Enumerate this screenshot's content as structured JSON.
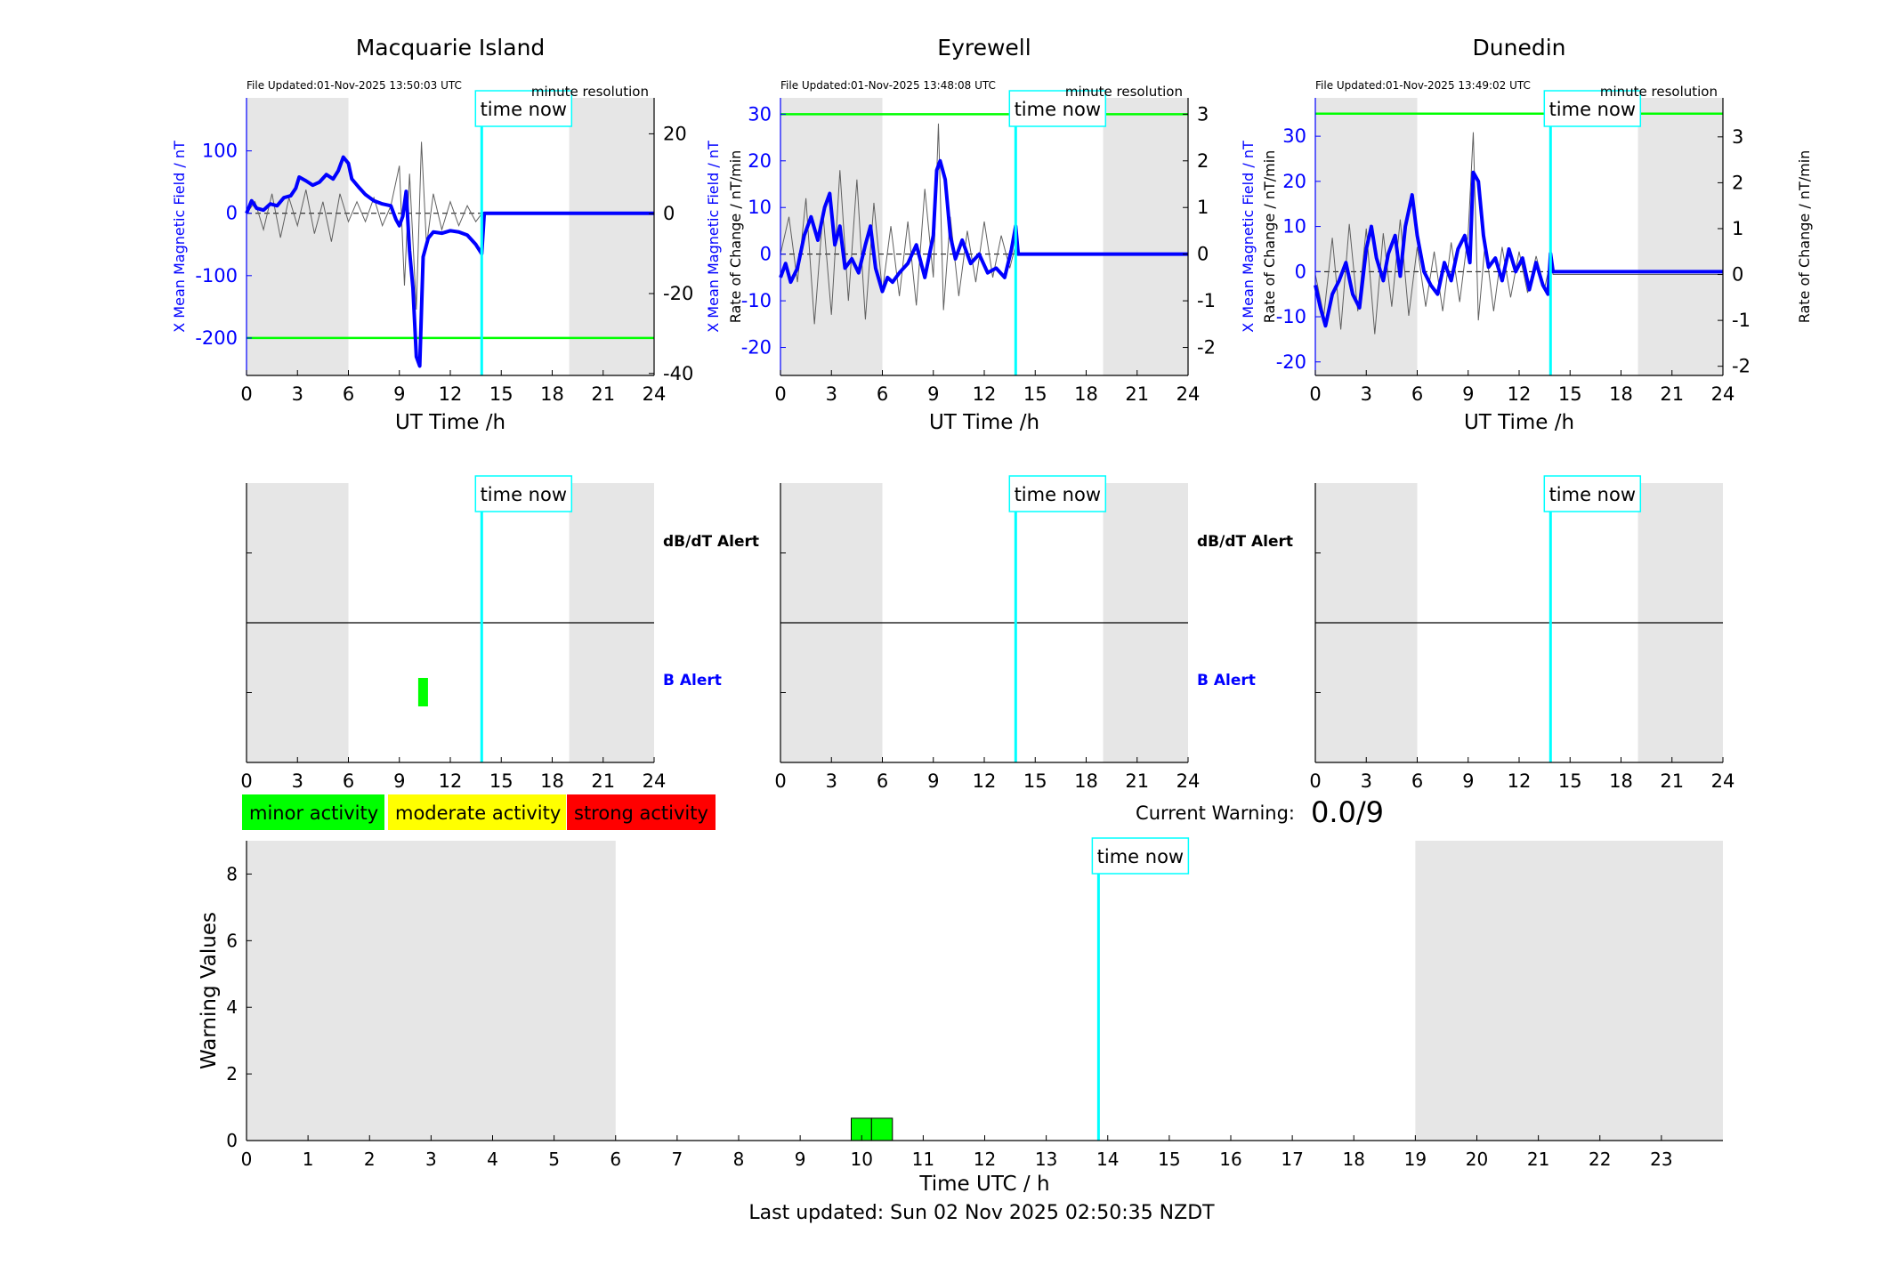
{
  "footer": {
    "last_updated": "Last updated: Sun 02 Nov 2025 02:50:35 NZDT"
  },
  "common": {
    "time_now_label": "time now",
    "now_hour": 13.85,
    "x_label_station": "UT Time /h",
    "resolution_label": "minute resolution",
    "dbdt_alert_label": "dB/dT Alert",
    "b_alert_label": "B Alert",
    "night_shading": [
      [
        0,
        6
      ],
      [
        19,
        24
      ]
    ],
    "colors": {
      "field": "#0000ff",
      "rate": "#606060",
      "threshold": "#00ff00",
      "now": "#00ffff",
      "shade": "#e6e6e6"
    }
  },
  "warning": {
    "current_label": "Current Warning:",
    "current_value": "0.0/9"
  },
  "legend": [
    {
      "label": "minor activity",
      "color": "#00ff00"
    },
    {
      "label": "moderate activity",
      "color": "#ffff00"
    },
    {
      "label": "strong activity",
      "color": "#ff0000"
    }
  ],
  "chart_data": [
    {
      "type": "line",
      "title": "Macquarie Island",
      "file_updated": "File Updated:01-Nov-2025 13:50:03 UTC",
      "ylabel": "X Mean Magnetic Field / nT",
      "ylabel_right": "Rate of Change / nT/min",
      "xlabel": "UT Time /h",
      "xlim": [
        0,
        24
      ],
      "xticks": [
        0,
        3,
        6,
        9,
        12,
        15,
        18,
        21,
        24
      ],
      "ylim": [
        -260,
        185
      ],
      "yticks": [
        -200,
        -100,
        0,
        100
      ],
      "ylim_right": [
        -40.5,
        29
      ],
      "yticks_right": [
        -40,
        -20,
        0,
        20
      ],
      "threshold": -200,
      "series": [
        {
          "role": "field",
          "x": [
            0,
            0.3,
            0.6,
            1,
            1.4,
            1.8,
            2.2,
            2.6,
            2.9,
            3.1,
            3.5,
            3.9,
            4.3,
            4.7,
            5.1,
            5.4,
            5.7,
            6.0,
            6.2,
            6.6,
            7.0,
            7.5,
            8.0,
            8.5,
            8.8,
            9.0,
            9.2,
            9.4,
            9.6,
            9.8,
            10.0,
            10.2,
            10.4,
            10.7,
            11.0,
            11.5,
            12.0,
            12.5,
            13.0,
            13.5,
            13.85,
            14.0,
            24
          ],
          "y": [
            0,
            20,
            8,
            5,
            15,
            12,
            25,
            28,
            40,
            58,
            52,
            45,
            50,
            62,
            55,
            68,
            90,
            80,
            55,
            42,
            30,
            20,
            15,
            12,
            -10,
            -20,
            -5,
            35,
            -60,
            -120,
            -230,
            -245,
            -70,
            -40,
            -30,
            -32,
            -28,
            -30,
            -35,
            -50,
            -65,
            0,
            0
          ]
        },
        {
          "role": "rate",
          "x": [
            0,
            0.5,
            1,
            1.5,
            2,
            2.5,
            3,
            3.5,
            4,
            4.5,
            5,
            5.5,
            6,
            6.5,
            7,
            7.5,
            8,
            8.5,
            9,
            9.3,
            9.6,
            10,
            10.3,
            10.6,
            11,
            11.5,
            12,
            12.5,
            13,
            13.5,
            13.85,
            14,
            24
          ],
          "y": [
            0,
            3,
            -4,
            5,
            -6,
            4,
            -3,
            6,
            -5,
            3,
            -7,
            5,
            -2,
            3,
            -2,
            4,
            -3,
            2,
            12,
            -18,
            10,
            -24,
            18,
            -8,
            5,
            -4,
            3,
            -3,
            2,
            -2,
            0,
            0,
            0
          ]
        }
      ],
      "b_alerts": [
        {
          "start": 9.9,
          "end": 10.4,
          "level": "minor"
        }
      ]
    },
    {
      "type": "line",
      "title": "Eyrewell",
      "file_updated": "File Updated:01-Nov-2025 13:48:08 UTC",
      "ylabel": "X Mean Magnetic Field / nT",
      "ylabel_right": "Rate of Change / nT/min",
      "xlabel": "UT Time /h",
      "xlim": [
        0,
        24
      ],
      "xticks": [
        0,
        3,
        6,
        9,
        12,
        15,
        18,
        21,
        24
      ],
      "ylim": [
        -26,
        33.5
      ],
      "yticks": [
        -20,
        -10,
        0,
        10,
        20,
        30
      ],
      "ylim_right": [
        -2.6,
        3.35
      ],
      "yticks_right": [
        -2,
        -1,
        0,
        1,
        2,
        3
      ],
      "threshold": 30,
      "series": [
        {
          "role": "field",
          "x": [
            0,
            0.3,
            0.6,
            1.0,
            1.4,
            1.8,
            2.2,
            2.6,
            2.9,
            3.2,
            3.5,
            3.8,
            4.2,
            4.6,
            5.0,
            5.3,
            5.6,
            6.0,
            6.3,
            6.6,
            7.0,
            7.5,
            8.0,
            8.5,
            9.0,
            9.2,
            9.4,
            9.7,
            10.0,
            10.3,
            10.7,
            11.2,
            11.7,
            12.2,
            12.7,
            13.2,
            13.6,
            13.85,
            14.0,
            24
          ],
          "y": [
            -5,
            -2,
            -6,
            -3,
            4,
            8,
            3,
            10,
            13,
            2,
            6,
            -3,
            -1,
            -4,
            2,
            6,
            -3,
            -8,
            -5,
            -6,
            -4,
            -2,
            2,
            -5,
            4,
            18,
            20,
            16,
            4,
            -1,
            3,
            -2,
            0,
            -4,
            -3,
            -5,
            1,
            6,
            0,
            0
          ]
        },
        {
          "role": "rate",
          "x": [
            0,
            0.5,
            1,
            1.5,
            2,
            2.5,
            3,
            3.5,
            4,
            4.5,
            5,
            5.5,
            6,
            6.5,
            7,
            7.5,
            8,
            8.5,
            9,
            9.3,
            9.6,
            10,
            10.5,
            11,
            11.5,
            12,
            12.5,
            13,
            13.5,
            13.85,
            14,
            24
          ],
          "y": [
            0,
            0.8,
            -0.6,
            1.2,
            -1.5,
            0.9,
            -1.3,
            1.8,
            -1.0,
            1.6,
            -1.4,
            1.1,
            -0.8,
            0.6,
            -0.9,
            0.7,
            -1.1,
            1.4,
            -0.5,
            2.8,
            -1.2,
            0.8,
            -0.9,
            0.5,
            -0.6,
            0.7,
            -0.5,
            0.4,
            -0.3,
            0.2,
            0,
            0
          ]
        }
      ],
      "b_alerts": []
    },
    {
      "type": "line",
      "title": "Dunedin",
      "file_updated": "File Updated:01-Nov-2025 13:49:02 UTC",
      "ylabel": "X Mean Magnetic Field / nT",
      "ylabel_right": "Rate of Change / nT/min",
      "xlabel": "UT Time /h",
      "xlim": [
        0,
        24
      ],
      "xticks": [
        0,
        3,
        6,
        9,
        12,
        15,
        18,
        21,
        24
      ],
      "ylim": [
        -23,
        38.5
      ],
      "yticks": [
        -20,
        -10,
        0,
        10,
        20,
        30
      ],
      "ylim_right": [
        -2.2,
        3.85
      ],
      "yticks_right": [
        -2,
        -1,
        0,
        1,
        2,
        3
      ],
      "threshold": 35,
      "series": [
        {
          "role": "field",
          "x": [
            0,
            0.3,
            0.6,
            1.0,
            1.4,
            1.8,
            2.2,
            2.6,
            3.0,
            3.3,
            3.6,
            4.0,
            4.3,
            4.7,
            5.0,
            5.3,
            5.7,
            6.0,
            6.4,
            6.8,
            7.2,
            7.6,
            8.0,
            8.4,
            8.8,
            9.1,
            9.3,
            9.6,
            9.9,
            10.2,
            10.6,
            11.0,
            11.4,
            11.8,
            12.2,
            12.6,
            13.0,
            13.4,
            13.7,
            13.85,
            14.0,
            24
          ],
          "y": [
            -3,
            -8,
            -12,
            -5,
            -2,
            2,
            -5,
            -8,
            5,
            10,
            3,
            -2,
            4,
            8,
            -1,
            10,
            17,
            8,
            0,
            -3,
            -5,
            2,
            -2,
            5,
            8,
            2,
            22,
            20,
            8,
            1,
            3,
            -2,
            5,
            0,
            3,
            -4,
            2,
            -3,
            -5,
            4,
            0,
            0
          ]
        },
        {
          "role": "rate",
          "x": [
            0,
            0.5,
            1,
            1.5,
            2,
            2.5,
            3,
            3.5,
            4,
            4.5,
            5,
            5.5,
            6,
            6.5,
            7,
            7.5,
            8,
            8.5,
            9,
            9.3,
            9.6,
            10,
            10.5,
            11,
            11.5,
            12,
            12.5,
            13,
            13.5,
            13.85,
            14,
            24
          ],
          "y": [
            0,
            -0.9,
            0.8,
            -1.2,
            1.1,
            -0.8,
            1.0,
            -1.3,
            0.9,
            -0.7,
            1.2,
            -0.9,
            0.6,
            -0.7,
            0.5,
            -0.8,
            0.7,
            -0.6,
            0.9,
            3.1,
            -1.0,
            0.7,
            -0.8,
            0.6,
            -0.5,
            0.5,
            -0.4,
            0.4,
            -0.3,
            0.3,
            0,
            0
          ]
        }
      ],
      "b_alerts": []
    },
    {
      "type": "bar",
      "ylabel": "Warning Values",
      "xlabel": "Time UTC / h",
      "xlim": [
        0,
        24
      ],
      "xticks": [
        0,
        1,
        2,
        3,
        4,
        5,
        6,
        7,
        8,
        9,
        10,
        11,
        12,
        13,
        14,
        15,
        16,
        17,
        18,
        19,
        20,
        21,
        22,
        23
      ],
      "ylim": [
        0,
        9
      ],
      "yticks": [
        0,
        2,
        4,
        6,
        8
      ],
      "bars": [
        {
          "start": 9.83,
          "end": 10.16,
          "value": 0.67,
          "level": "minor"
        },
        {
          "start": 10.16,
          "end": 10.5,
          "value": 0.67,
          "level": "minor"
        }
      ]
    }
  ]
}
